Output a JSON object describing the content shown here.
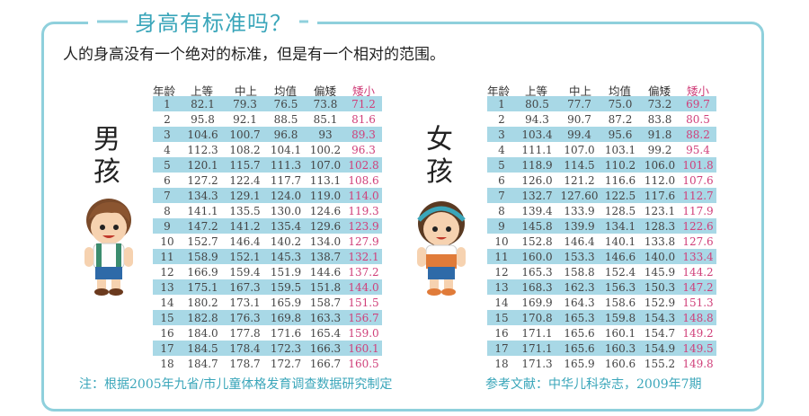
{
  "title": "身高有标准吗？",
  "subtitle": "人的身高没有一个绝对的标准，但是有一个相对的范围。",
  "headers": [
    "年龄",
    "上等",
    "中上",
    "均值",
    "偏矮",
    "矮小"
  ],
  "boy": {
    "label_line1": "男",
    "label_line2": "孩",
    "rows": [
      [
        "1",
        "82.1",
        "79.3",
        "76.5",
        "73.8",
        "71.2"
      ],
      [
        "2",
        "95.8",
        "92.1",
        "88.5",
        "85.1",
        "81.6"
      ],
      [
        "3",
        "104.6",
        "100.7",
        "96.8",
        "93",
        "89.3"
      ],
      [
        "4",
        "112.3",
        "108.2",
        "104.1",
        "100.2",
        "96.3"
      ],
      [
        "5",
        "120.1",
        "115.7",
        "111.3",
        "107.0",
        "102.8"
      ],
      [
        "6",
        "127.2",
        "122.4",
        "117.7",
        "113.1",
        "108.6"
      ],
      [
        "7",
        "134.3",
        "129.1",
        "124.0",
        "119.0",
        "114.0"
      ],
      [
        "8",
        "141.1",
        "135.5",
        "130.0",
        "124.6",
        "119.3"
      ],
      [
        "9",
        "147.2",
        "141.2",
        "135.4",
        "129.6",
        "123.9"
      ],
      [
        "10",
        "152.7",
        "146.4",
        "140.2",
        "134.0",
        "127.9"
      ],
      [
        "11",
        "158.9",
        "152.1",
        "145.3",
        "138.7",
        "132.1"
      ],
      [
        "12",
        "166.9",
        "159.4",
        "151.9",
        "144.6",
        "137.2"
      ],
      [
        "13",
        "175.1",
        "167.3",
        "159.5",
        "151.8",
        "144.0"
      ],
      [
        "14",
        "180.2",
        "173.1",
        "165.9",
        "158.7",
        "151.5"
      ],
      [
        "15",
        "182.8",
        "176.3",
        "169.8",
        "163.3",
        "156.7"
      ],
      [
        "16",
        "184.0",
        "177.8",
        "171.6",
        "165.4",
        "159.0"
      ],
      [
        "17",
        "184.5",
        "178.4",
        "172.3",
        "166.3",
        "160.1"
      ],
      [
        "18",
        "184.7",
        "178.7",
        "172.7",
        "166.7",
        "160.5"
      ]
    ]
  },
  "girl": {
    "label_line1": "女",
    "label_line2": "孩",
    "rows": [
      [
        "1",
        "80.5",
        "77.7",
        "75.0",
        "73.2",
        "69.7"
      ],
      [
        "2",
        "94.3",
        "90.7",
        "87.2",
        "83.8",
        "80.5"
      ],
      [
        "3",
        "103.4",
        "99.4",
        "95.6",
        "91.8",
        "88.2"
      ],
      [
        "4",
        "111.1",
        "107.0",
        "103.1",
        "99.2",
        "95.4"
      ],
      [
        "5",
        "118.9",
        "114.5",
        "110.2",
        "106.0",
        "101.8"
      ],
      [
        "6",
        "126.0",
        "121.2",
        "116.6",
        "112.0",
        "107.6"
      ],
      [
        "7",
        "132.7",
        "127.60",
        "122.5",
        "117.6",
        "112.7"
      ],
      [
        "8",
        "139.4",
        "133.9",
        "128.5",
        "123.1",
        "117.9"
      ],
      [
        "9",
        "145.8",
        "139.9",
        "134.1",
        "128.3",
        "122.6"
      ],
      [
        "10",
        "152.8",
        "146.4",
        "140.1",
        "133.8",
        "127.6"
      ],
      [
        "11",
        "160.0",
        "153.3",
        "146.6",
        "140.0",
        "133.4"
      ],
      [
        "12",
        "165.3",
        "158.8",
        "152.4",
        "145.9",
        "144.2"
      ],
      [
        "13",
        "168.3",
        "162.3",
        "156.3",
        "150.3",
        "147.2"
      ],
      [
        "14",
        "169.9",
        "164.3",
        "158.6",
        "152.9",
        "151.3"
      ],
      [
        "15",
        "170.8",
        "165.3",
        "159.8",
        "154.3",
        "148.8"
      ],
      [
        "16",
        "171.1",
        "165.6",
        "160.1",
        "154.7",
        "149.2"
      ],
      [
        "17",
        "171.1",
        "165.6",
        "160.3",
        "154.9",
        "149.5"
      ],
      [
        "18",
        "171.3",
        "165.9",
        "160.6",
        "155.2",
        "149.8"
      ]
    ]
  },
  "note_left": "注：根据2005年九省/市儿童体格发育调查数据研究制定",
  "note_right": "参考文献：中华儿科杂志，2009年7期",
  "colors": {
    "accent": "#3aa6ba",
    "band": "#a8d8e6",
    "small": "#d0407a"
  }
}
